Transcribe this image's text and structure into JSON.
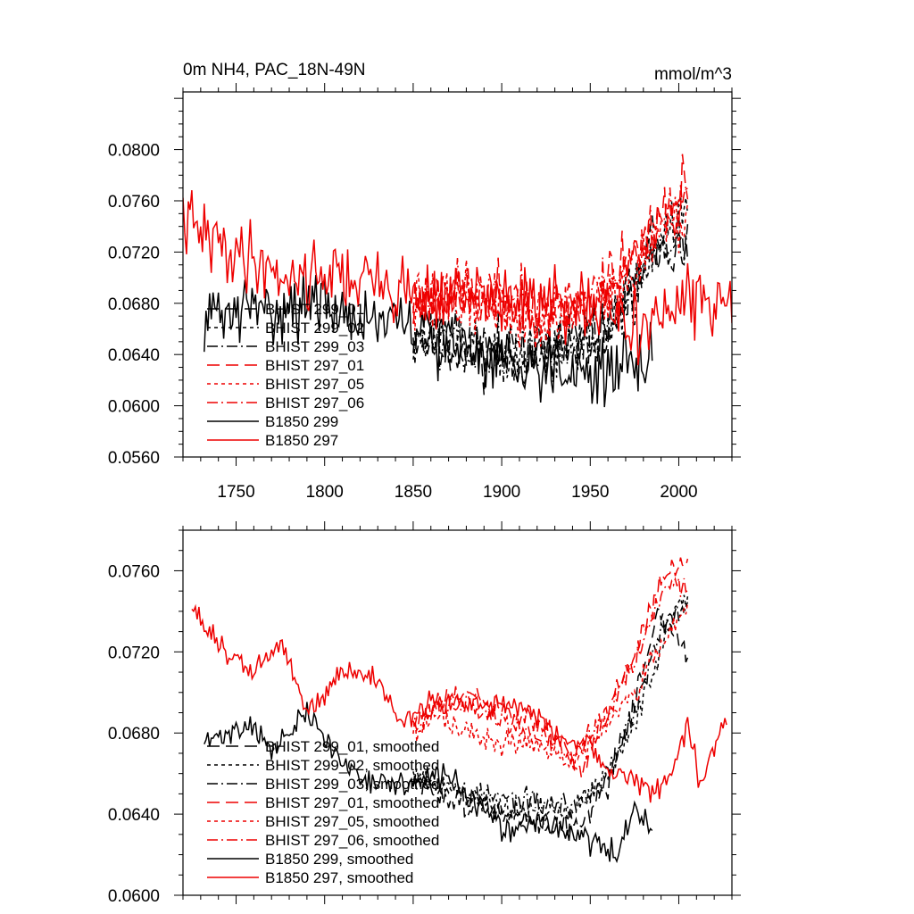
{
  "chart_data": [
    {
      "type": "line",
      "title": "0m NH4, PAC_18N-49N",
      "units": "mmol/m^3",
      "xlim": [
        1720,
        2030
      ],
      "ylim": [
        0.056,
        0.0845
      ],
      "yticks": [
        "0.0560",
        "0.0600",
        "0.0640",
        "0.0680",
        "0.0720",
        "0.0760",
        "0.0800"
      ],
      "xticks": [
        "1750",
        "1800",
        "1850",
        "1900",
        "1950",
        "2000"
      ],
      "legend_position": "lower-left",
      "grid": false,
      "series": [
        {
          "name": "BHIST 299_01",
          "color": "#000000",
          "dash": "longdash",
          "x0": 1850,
          "x1": 2005,
          "base": [
            [
              1850,
              0.0655
            ],
            [
              1880,
              0.064
            ],
            [
              1910,
              0.0635
            ],
            [
              1940,
              0.065
            ],
            [
              1960,
              0.066
            ],
            [
              1975,
              0.069
            ],
            [
              1985,
              0.073
            ],
            [
              2005,
              0.072
            ]
          ],
          "amp": 0.0022,
          "seed": 11
        },
        {
          "name": "BHIST 299_02",
          "color": "#000000",
          "dash": "short",
          "x0": 1850,
          "x1": 2005,
          "base": [
            [
              1850,
              0.0655
            ],
            [
              1880,
              0.0645
            ],
            [
              1910,
              0.064
            ],
            [
              1940,
              0.0645
            ],
            [
              1960,
              0.066
            ],
            [
              1975,
              0.069
            ],
            [
              1990,
              0.0735
            ],
            [
              2005,
              0.0745
            ]
          ],
          "amp": 0.0022,
          "seed": 12
        },
        {
          "name": "BHIST 299_03",
          "color": "#000000",
          "dash": "dashdot",
          "x0": 1850,
          "x1": 2005,
          "base": [
            [
              1850,
              0.0655
            ],
            [
              1880,
              0.0645
            ],
            [
              1910,
              0.0645
            ],
            [
              1940,
              0.0645
            ],
            [
              1960,
              0.066
            ],
            [
              1975,
              0.069
            ],
            [
              1990,
              0.0735
            ],
            [
              2005,
              0.0725
            ]
          ],
          "amp": 0.0022,
          "seed": 13
        },
        {
          "name": "BHIST 297_01",
          "color": "#ee0000",
          "dash": "longdash",
          "x0": 1850,
          "x1": 2005,
          "base": [
            [
              1850,
              0.0685
            ],
            [
              1875,
              0.069
            ],
            [
              1900,
              0.0685
            ],
            [
              1930,
              0.0675
            ],
            [
              1950,
              0.068
            ],
            [
              1970,
              0.0705
            ],
            [
              1990,
              0.0755
            ],
            [
              2005,
              0.077
            ]
          ],
          "amp": 0.0024,
          "seed": 21
        },
        {
          "name": "BHIST 297_05",
          "color": "#ee0000",
          "dash": "short",
          "x0": 1850,
          "x1": 2005,
          "base": [
            [
              1850,
              0.068
            ],
            [
              1875,
              0.0685
            ],
            [
              1900,
              0.0675
            ],
            [
              1930,
              0.067
            ],
            [
              1950,
              0.0675
            ],
            [
              1970,
              0.0695
            ],
            [
              1990,
              0.0735
            ],
            [
              2005,
              0.0745
            ]
          ],
          "amp": 0.0024,
          "seed": 22
        },
        {
          "name": "BHIST 297_06",
          "color": "#ee0000",
          "dash": "dashdot",
          "x0": 1850,
          "x1": 2005,
          "base": [
            [
              1850,
              0.068
            ],
            [
              1875,
              0.069
            ],
            [
              1900,
              0.068
            ],
            [
              1930,
              0.0675
            ],
            [
              1950,
              0.0685
            ],
            [
              1970,
              0.0705
            ],
            [
              1990,
              0.075
            ],
            [
              2005,
              0.076
            ]
          ],
          "amp": 0.0024,
          "seed": 23
        },
        {
          "name": "B1850 299",
          "color": "#000000",
          "dash": "solid",
          "x0": 1732,
          "x1": 1985,
          "base": [
            [
              1732,
              0.067
            ],
            [
              1760,
              0.0675
            ],
            [
              1790,
              0.068
            ],
            [
              1820,
              0.067
            ],
            [
              1850,
              0.066
            ],
            [
              1880,
              0.0645
            ],
            [
              1910,
              0.0635
            ],
            [
              1940,
              0.063
            ],
            [
              1960,
              0.0625
            ],
            [
              1985,
              0.064
            ]
          ],
          "amp": 0.0025,
          "seed": 31
        },
        {
          "name": "B1850 297",
          "color": "#ee0000",
          "dash": "solid",
          "x0": 1720,
          "x1": 2030,
          "base": [
            [
              1720,
              0.0745
            ],
            [
              1740,
              0.0725
            ],
            [
              1760,
              0.0715
            ],
            [
              1780,
              0.07
            ],
            [
              1800,
              0.0705
            ],
            [
              1830,
              0.0695
            ],
            [
              1860,
              0.0685
            ],
            [
              1900,
              0.0685
            ],
            [
              1940,
              0.0675
            ],
            [
              1960,
              0.067
            ],
            [
              1985,
              0.0665
            ],
            [
              2005,
              0.068
            ],
            [
              2030,
              0.0685
            ]
          ],
          "amp": 0.0027,
          "seed": 41
        }
      ]
    },
    {
      "type": "line",
      "xlim": [
        1720,
        2030
      ],
      "ylim": [
        0.06,
        0.078
      ],
      "yticks": [
        "0.0600",
        "0.0640",
        "0.0680",
        "0.0720",
        "0.0760"
      ],
      "legend_position": "lower-left",
      "grid": false,
      "series": [
        {
          "name": "BHIST 299_01, smoothed",
          "color": "#000000",
          "dash": "longdash",
          "x0": 1850,
          "x1": 2005,
          "base": [
            [
              1850,
              0.0655
            ],
            [
              1880,
              0.0645
            ],
            [
              1900,
              0.064
            ],
            [
              1925,
              0.0635
            ],
            [
              1945,
              0.0635
            ],
            [
              1960,
              0.0655
            ],
            [
              1975,
              0.0695
            ],
            [
              1988,
              0.074
            ],
            [
              2000,
              0.0725
            ],
            [
              2005,
              0.0718
            ]
          ],
          "amp": 0.0006,
          "seed": 51
        },
        {
          "name": "BHIST 299_02, smoothed",
          "color": "#000000",
          "dash": "short",
          "x0": 1850,
          "x1": 2005,
          "base": [
            [
              1850,
              0.066
            ],
            [
              1880,
              0.065
            ],
            [
              1900,
              0.0645
            ],
            [
              1925,
              0.064
            ],
            [
              1945,
              0.0645
            ],
            [
              1960,
              0.066
            ],
            [
              1975,
              0.0685
            ],
            [
              1990,
              0.072
            ],
            [
              2000,
              0.0745
            ],
            [
              2005,
              0.0745
            ]
          ],
          "amp": 0.0006,
          "seed": 52
        },
        {
          "name": "BHIST 299_03, smoothed",
          "color": "#000000",
          "dash": "dashdot",
          "x0": 1850,
          "x1": 2005,
          "base": [
            [
              1850,
              0.066
            ],
            [
              1880,
              0.065
            ],
            [
              1900,
              0.0648
            ],
            [
              1925,
              0.0645
            ],
            [
              1945,
              0.0645
            ],
            [
              1960,
              0.066
            ],
            [
              1975,
              0.069
            ],
            [
              1990,
              0.073
            ],
            [
              2000,
              0.074
            ],
            [
              2005,
              0.0745
            ]
          ],
          "amp": 0.0006,
          "seed": 53
        },
        {
          "name": "BHIST 297_01, smoothed",
          "color": "#ee0000",
          "dash": "longdash",
          "x0": 1850,
          "x1": 2005,
          "base": [
            [
              1850,
              0.0685
            ],
            [
              1865,
              0.0695
            ],
            [
              1880,
              0.07
            ],
            [
              1900,
              0.069
            ],
            [
              1920,
              0.0685
            ],
            [
              1935,
              0.0675
            ],
            [
              1945,
              0.066
            ],
            [
              1960,
              0.069
            ],
            [
              1975,
              0.072
            ],
            [
              1990,
              0.0755
            ],
            [
              2005,
              0.0765
            ]
          ],
          "amp": 0.0006,
          "seed": 61
        },
        {
          "name": "BHIST 297_05, smoothed",
          "color": "#ee0000",
          "dash": "short",
          "x0": 1850,
          "x1": 2005,
          "base": [
            [
              1850,
              0.068
            ],
            [
              1865,
              0.069
            ],
            [
              1880,
              0.068
            ],
            [
              1900,
              0.0675
            ],
            [
              1920,
              0.0675
            ],
            [
              1940,
              0.0665
            ],
            [
              1955,
              0.068
            ],
            [
              1975,
              0.07
            ],
            [
              1990,
              0.0725
            ],
            [
              2005,
              0.074
            ]
          ],
          "amp": 0.0006,
          "seed": 62
        },
        {
          "name": "BHIST 297_06, smoothed",
          "color": "#ee0000",
          "dash": "dashdot",
          "x0": 1850,
          "x1": 2005,
          "base": [
            [
              1850,
              0.068
            ],
            [
              1865,
              0.0695
            ],
            [
              1880,
              0.0695
            ],
            [
              1900,
              0.0685
            ],
            [
              1920,
              0.068
            ],
            [
              1940,
              0.067
            ],
            [
              1955,
              0.0685
            ],
            [
              1975,
              0.0715
            ],
            [
              1990,
              0.075
            ],
            [
              2005,
              0.0755
            ]
          ],
          "amp": 0.0006,
          "seed": 63
        },
        {
          "name": "B1850 299, smoothed",
          "color": "#000000",
          "dash": "solid",
          "x0": 1732,
          "x1": 1985,
          "base": [
            [
              1732,
              0.0675
            ],
            [
              1745,
              0.068
            ],
            [
              1760,
              0.0685
            ],
            [
              1770,
              0.067
            ],
            [
              1790,
              0.069
            ],
            [
              1810,
              0.0665
            ],
            [
              1830,
              0.0655
            ],
            [
              1850,
              0.0655
            ],
            [
              1870,
              0.066
            ],
            [
              1885,
              0.0645
            ],
            [
              1905,
              0.063
            ],
            [
              1920,
              0.0638
            ],
            [
              1940,
              0.063
            ],
            [
              1955,
              0.0625
            ],
            [
              1965,
              0.0618
            ],
            [
              1975,
              0.0645
            ],
            [
              1980,
              0.064
            ],
            [
              1985,
              0.0632
            ]
          ],
          "amp": 0.0006,
          "seed": 71
        },
        {
          "name": "B1850 297, smoothed",
          "color": "#ee0000",
          "dash": "solid",
          "x0": 1725,
          "x1": 2027,
          "base": [
            [
              1725,
              0.0743
            ],
            [
              1735,
              0.073
            ],
            [
              1745,
              0.0718
            ],
            [
              1760,
              0.071
            ],
            [
              1775,
              0.0725
            ],
            [
              1790,
              0.069
            ],
            [
              1800,
              0.07
            ],
            [
              1810,
              0.0712
            ],
            [
              1830,
              0.0705
            ],
            [
              1845,
              0.0685
            ],
            [
              1860,
              0.0695
            ],
            [
              1880,
              0.0695
            ],
            [
              1900,
              0.0695
            ],
            [
              1920,
              0.069
            ],
            [
              1935,
              0.0675
            ],
            [
              1950,
              0.0675
            ],
            [
              1960,
              0.066
            ],
            [
              1975,
              0.0655
            ],
            [
              1985,
              0.065
            ],
            [
              1995,
              0.066
            ],
            [
              2005,
              0.0685
            ],
            [
              2012,
              0.0655
            ],
            [
              2020,
              0.0675
            ],
            [
              2027,
              0.0687
            ]
          ],
          "amp": 0.0006,
          "seed": 81
        }
      ]
    }
  ]
}
